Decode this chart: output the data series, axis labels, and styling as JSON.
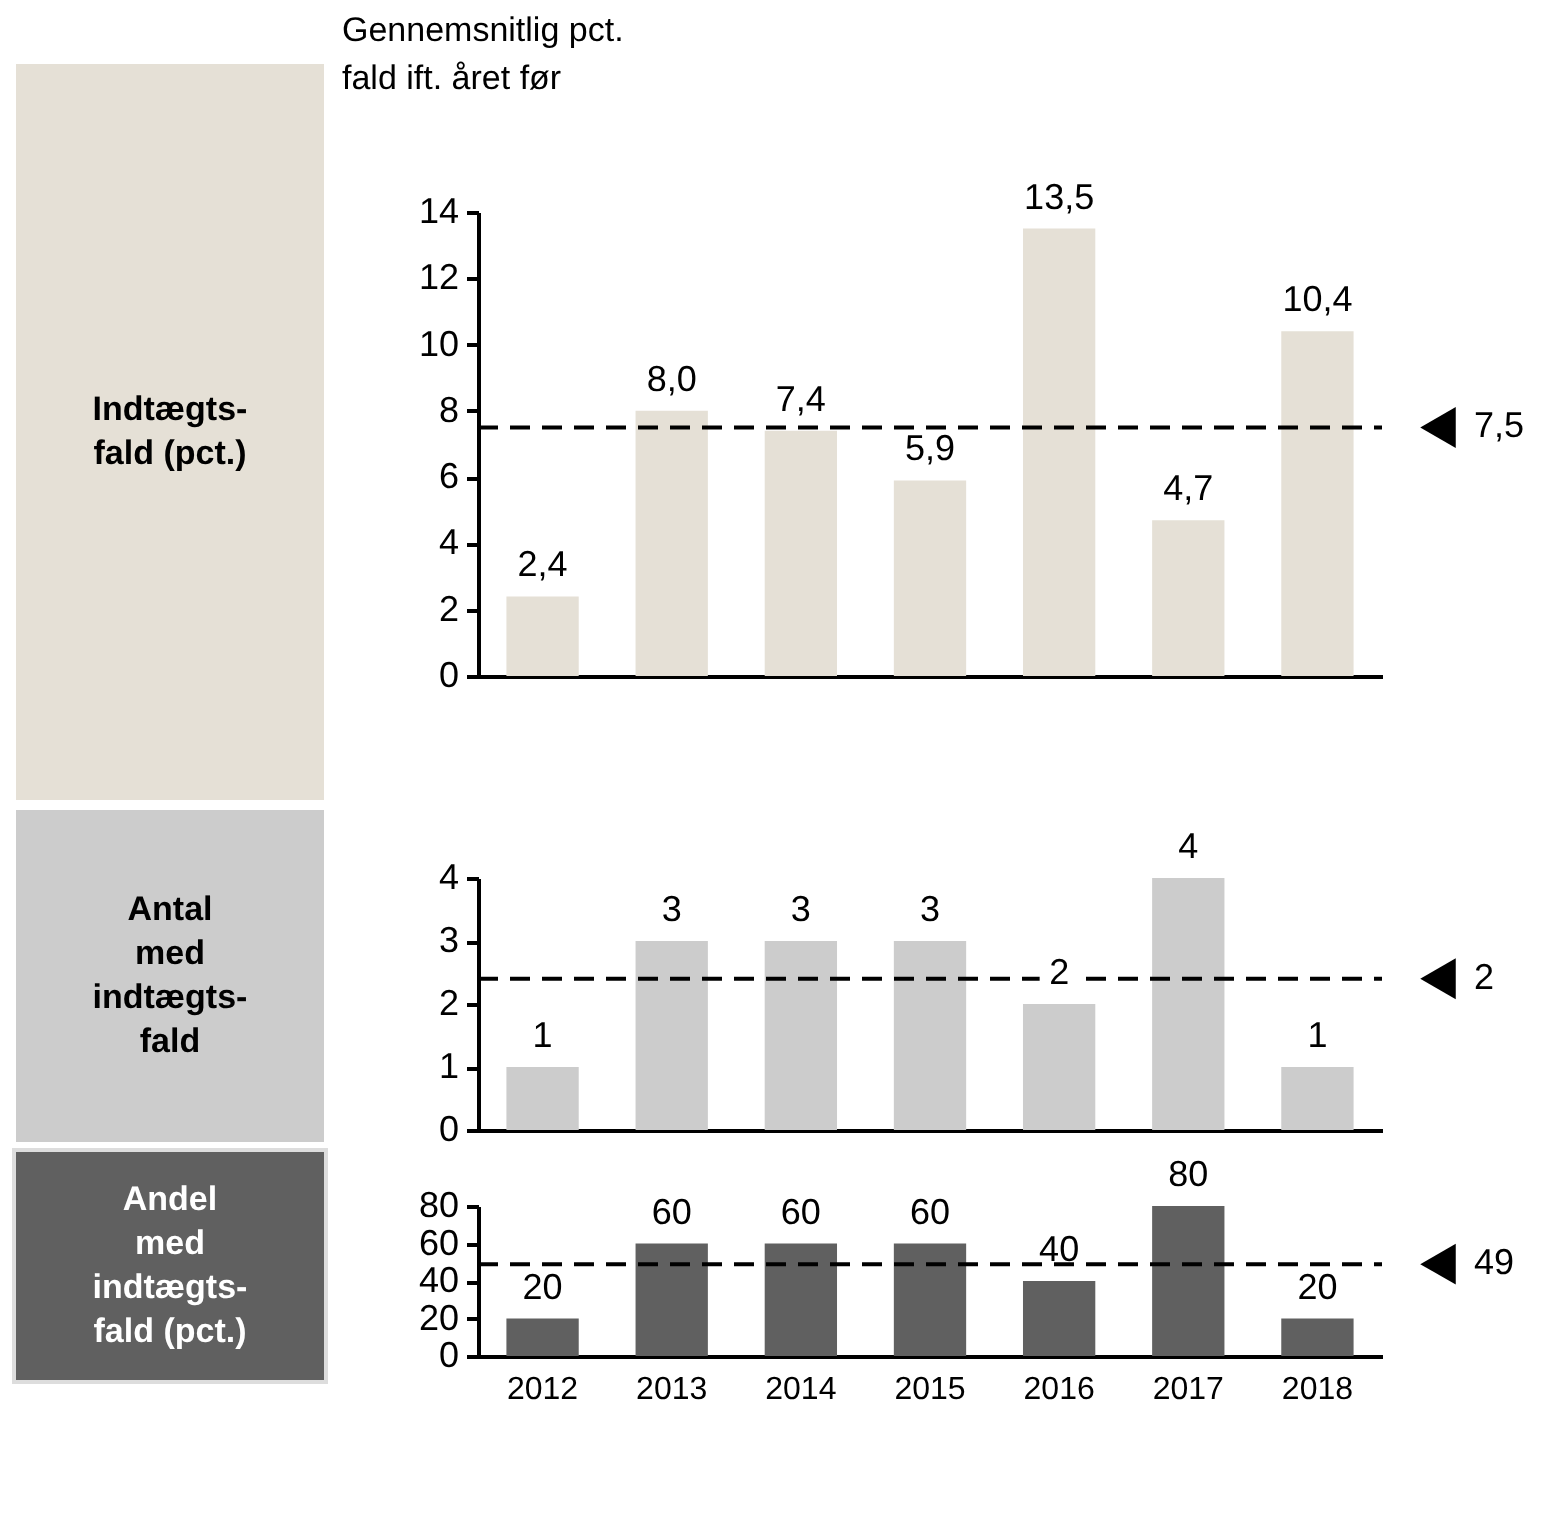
{
  "chart_data": [
    {
      "type": "bar",
      "title": "Gennemsnitlig pct.\nfald ift. året før",
      "ylabel": "Indtægts-\nfald (pct.)",
      "categories": [
        "2012",
        "2013",
        "2014",
        "2015",
        "2016",
        "2017",
        "2018"
      ],
      "values": [
        2.4,
        8.0,
        7.4,
        5.9,
        13.5,
        4.7,
        10.4
      ],
      "value_labels": [
        "2,4",
        "8,0",
        "7,4",
        "5,9",
        "13,5",
        "4,7",
        "10,4"
      ],
      "color": "#e5e0d6",
      "ylim": [
        0,
        14
      ],
      "yticks": [
        0,
        2,
        4,
        6,
        8,
        10,
        12,
        14
      ],
      "tick_labels": "y",
      "ref_lines": [
        {
          "axis": "y",
          "value": 7.5,
          "label": "7,5",
          "line_style": "dashed",
          "color": "#000000"
        }
      ]
    },
    {
      "type": "bar",
      "ylabel": "Antal\nmed\nindtægts-\nfald",
      "categories": [
        "2012",
        "2013",
        "2014",
        "2015",
        "2016",
        "2017",
        "2018"
      ],
      "values": [
        1,
        3,
        3,
        3,
        2,
        4,
        1
      ],
      "data_labels": true,
      "color": "#cccccc",
      "ylim": [
        0,
        4
      ],
      "yticks": [
        0,
        1,
        2,
        3,
        4
      ],
      "tick_labels": "y",
      "ref_lines": [
        {
          "axis": "y",
          "value": 2.4,
          "label": "2",
          "line_style": "dashed",
          "color": "#000000"
        }
      ]
    },
    {
      "type": "bar",
      "ylabel": "Andel\nmed\nindtægts-\nfald (pct.)",
      "categories": [
        "2012",
        "2013",
        "2014",
        "2015",
        "2016",
        "2017",
        "2018"
      ],
      "values": [
        20,
        60,
        60,
        60,
        40,
        80,
        20
      ],
      "data_labels": true,
      "color": "#606060",
      "ylim": [
        0,
        80
      ],
      "yticks": [
        0,
        20,
        40,
        60,
        80
      ],
      "ref_lines": [
        {
          "axis": "y",
          "value": 49,
          "label": "49",
          "line_style": "dashed",
          "color": "#000000"
        }
      ]
    }
  ]
}
